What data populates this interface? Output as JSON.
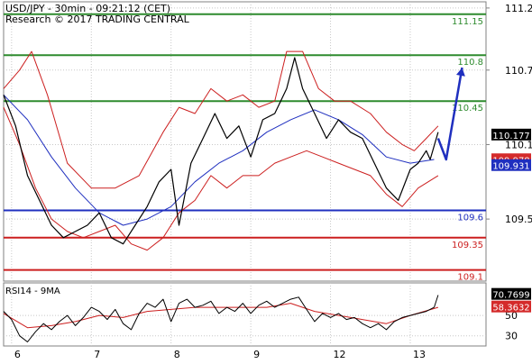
{
  "header": {
    "line1": "USD/JPY - 30min - 09:21:12 (CET)",
    "line2": "Research © 2017 TRADING CENTRAL"
  },
  "chart_data": {
    "type": "line",
    "instrument": "USD/JPY",
    "timeframe": "30min",
    "ylim": [
      109.0,
      111.25
    ],
    "y_ticks": [
      {
        "value": 111.2,
        "label": "111.2"
      },
      {
        "value": 110.7,
        "label": "110.7"
      },
      {
        "value": 110.1,
        "label": "110.1"
      },
      {
        "value": 109.5,
        "label": "109.5"
      }
    ],
    "x_ticks": [
      {
        "label": "6",
        "at": 0.0
      },
      {
        "label": "7",
        "at": 1.0
      },
      {
        "label": "8",
        "at": 2.0
      },
      {
        "label": "9",
        "at": 3.0
      },
      {
        "label": "12",
        "at": 4.0
      },
      {
        "label": "13",
        "at": 5.0
      }
    ],
    "x_range": [
      -0.1,
      5.95
    ],
    "levels": [
      {
        "label": "111.15",
        "value": 111.15,
        "color": "#2e8b2e"
      },
      {
        "label": "110.8",
        "value": 110.82,
        "color": "#2e8b2e"
      },
      {
        "label": "110.45",
        "value": 110.45,
        "color": "#2e8b2e"
      },
      {
        "label": "109.6",
        "value": 109.57,
        "color": "#1f2fbf"
      },
      {
        "label": "109.35",
        "value": 109.35,
        "color": "#cc1f1f"
      },
      {
        "label": "109.1",
        "value": 109.09,
        "color": "#cc1f1f"
      }
    ],
    "price_badges": [
      {
        "label": "110.177",
        "value": 110.177,
        "bg": "#000000",
        "fg": "#ffffff"
      },
      {
        "label": "109.978",
        "value": 109.978,
        "bg": "#d42a2a",
        "fg": "#ffffff"
      },
      {
        "label": "109.931",
        "value": 109.931,
        "bg": "#1f2fbf",
        "fg": "#ffffff"
      }
    ],
    "price_series": {
      "x": [
        -0.1,
        0.05,
        0.2,
        0.35,
        0.5,
        0.65,
        0.8,
        0.95,
        1.1,
        1.25,
        1.4,
        1.55,
        1.7,
        1.85,
        2.0,
        2.1,
        2.25,
        2.4,
        2.55,
        2.7,
        2.85,
        3.0,
        3.15,
        3.3,
        3.45,
        3.55,
        3.65,
        3.8,
        3.95,
        4.1,
        4.25,
        4.4,
        4.55,
        4.7,
        4.85,
        5.0,
        5.1,
        5.2,
        5.25,
        5.35
      ],
      "y": [
        110.5,
        110.25,
        109.85,
        109.65,
        109.45,
        109.35,
        109.4,
        109.45,
        109.55,
        109.35,
        109.3,
        109.45,
        109.6,
        109.8,
        109.9,
        109.45,
        109.95,
        110.15,
        110.35,
        110.15,
        110.25,
        110.0,
        110.3,
        110.35,
        110.55,
        110.8,
        110.55,
        110.35,
        110.15,
        110.3,
        110.2,
        110.15,
        109.95,
        109.75,
        109.65,
        109.9,
        109.95,
        110.05,
        109.98,
        110.2
      ],
      "color": "#000000"
    },
    "moving_average": {
      "x": [
        -0.1,
        0.2,
        0.5,
        0.8,
        1.1,
        1.4,
        1.7,
        2.0,
        2.3,
        2.6,
        2.9,
        3.2,
        3.5,
        3.8,
        4.1,
        4.4,
        4.7,
        5.0,
        5.3
      ],
      "y": [
        110.5,
        110.3,
        110.0,
        109.75,
        109.55,
        109.45,
        109.5,
        109.6,
        109.8,
        109.95,
        110.05,
        110.2,
        110.3,
        110.38,
        110.3,
        110.18,
        110.0,
        109.95,
        109.98
      ],
      "color": "#1f2fbf"
    },
    "bollinger_upper": {
      "x": [
        -0.1,
        0.1,
        0.25,
        0.45,
        0.7,
        1.0,
        1.3,
        1.6,
        1.9,
        2.1,
        2.3,
        2.5,
        2.7,
        2.9,
        3.1,
        3.3,
        3.45,
        3.65,
        3.85,
        4.05,
        4.25,
        4.5,
        4.7,
        4.9,
        5.05,
        5.2,
        5.35
      ],
      "y": [
        110.55,
        110.7,
        110.85,
        110.5,
        109.95,
        109.75,
        109.75,
        109.85,
        110.2,
        110.4,
        110.35,
        110.55,
        110.45,
        110.5,
        110.4,
        110.45,
        110.85,
        110.85,
        110.55,
        110.45,
        110.45,
        110.35,
        110.2,
        110.1,
        110.05,
        110.15,
        110.25
      ],
      "color": "#cc1f1f"
    },
    "bollinger_lower": {
      "x": [
        -0.1,
        0.1,
        0.3,
        0.5,
        0.7,
        0.9,
        1.1,
        1.3,
        1.5,
        1.7,
        1.9,
        2.1,
        2.3,
        2.5,
        2.7,
        2.9,
        3.1,
        3.3,
        3.5,
        3.7,
        3.9,
        4.1,
        4.3,
        4.5,
        4.7,
        4.9,
        5.1,
        5.35
      ],
      "y": [
        110.4,
        110.1,
        109.75,
        109.5,
        109.4,
        109.35,
        109.4,
        109.45,
        109.3,
        109.25,
        109.35,
        109.55,
        109.65,
        109.85,
        109.75,
        109.85,
        109.85,
        109.95,
        110.0,
        110.05,
        110.0,
        109.95,
        109.9,
        109.85,
        109.7,
        109.6,
        109.75,
        109.85
      ],
      "color": "#cc1f1f"
    },
    "projection": {
      "x": [
        5.35,
        5.45,
        5.65
      ],
      "y": [
        110.15,
        109.98,
        110.72
      ],
      "color": "#1f2fbf"
    },
    "rsi": {
      "label": "RSI14 - 9MA",
      "ylim": [
        20,
        82
      ],
      "y_ticks": [
        {
          "value": 50,
          "label": "50"
        },
        {
          "value": 30,
          "label": "30"
        }
      ],
      "badges": [
        {
          "label": "70.7699",
          "value": 70.77,
          "bg": "#000000",
          "fg": "#ffffff"
        },
        {
          "label": "58.3632",
          "value": 58.36,
          "bg": "#d42a2a",
          "fg": "#ffffff"
        }
      ],
      "rsi_line": {
        "x": [
          -0.1,
          0.0,
          0.1,
          0.2,
          0.3,
          0.4,
          0.5,
          0.6,
          0.7,
          0.8,
          0.9,
          1.0,
          1.1,
          1.2,
          1.3,
          1.4,
          1.5,
          1.6,
          1.7,
          1.8,
          1.9,
          2.0,
          2.1,
          2.2,
          2.3,
          2.4,
          2.5,
          2.6,
          2.7,
          2.8,
          2.9,
          3.0,
          3.1,
          3.2,
          3.3,
          3.4,
          3.5,
          3.6,
          3.7,
          3.8,
          3.9,
          4.0,
          4.1,
          4.2,
          4.3,
          4.4,
          4.5,
          4.6,
          4.7,
          4.8,
          4.9,
          5.0,
          5.1,
          5.2,
          5.3,
          5.35
        ],
        "y": [
          54,
          46,
          30,
          24,
          34,
          42,
          36,
          44,
          50,
          40,
          48,
          58,
          54,
          46,
          56,
          42,
          36,
          52,
          62,
          58,
          66,
          44,
          62,
          66,
          58,
          60,
          64,
          52,
          58,
          54,
          62,
          52,
          60,
          64,
          58,
          62,
          66,
          68,
          56,
          44,
          52,
          48,
          52,
          46,
          48,
          42,
          38,
          42,
          36,
          44,
          48,
          50,
          52,
          54,
          58,
          70
        ],
        "color": "#000000"
      },
      "ma_line": {
        "x": [
          -0.1,
          0.2,
          0.5,
          0.8,
          1.1,
          1.4,
          1.7,
          2.0,
          2.3,
          2.6,
          2.9,
          3.2,
          3.5,
          3.8,
          4.1,
          4.4,
          4.7,
          5.0,
          5.35
        ],
        "y": [
          52,
          38,
          40,
          44,
          50,
          48,
          54,
          56,
          58,
          58,
          58,
          58,
          62,
          54,
          50,
          46,
          42,
          50,
          58
        ],
        "color": "#cc1f1f"
      }
    }
  }
}
